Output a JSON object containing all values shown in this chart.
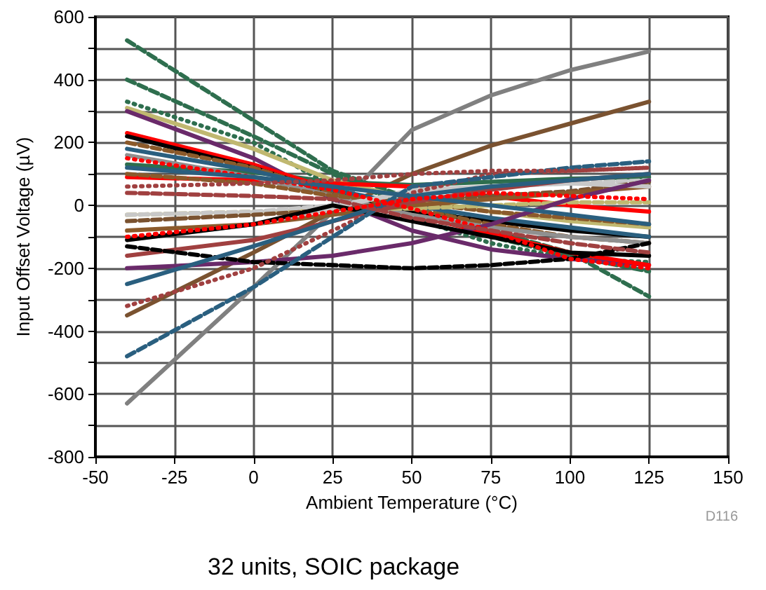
{
  "chart_data": {
    "type": "line",
    "xlabel": "Ambient Temperature (°C)",
    "ylabel": "Input Offset Voltage (µV)",
    "annotations": [
      "D116",
      "32 units, SOIC package"
    ],
    "x": [
      -40,
      0,
      25,
      50,
      75,
      100,
      125
    ],
    "xlim": [
      -50,
      150
    ],
    "xticks": [
      -50,
      -25,
      0,
      25,
      50,
      75,
      100,
      125,
      150
    ],
    "ylim": [
      -800,
      600
    ],
    "yticks": [
      -800,
      {
        "value": -700,
        "label": null
      },
      -600,
      {
        "value": -500,
        "label": null
      },
      -400,
      {
        "value": -300,
        "label": null
      },
      -200,
      {
        "value": -100,
        "label": null
      },
      0,
      {
        "value": 100,
        "label": null
      },
      200,
      {
        "value": 300,
        "label": null
      },
      400,
      {
        "value": 500,
        "label": null
      },
      600
    ],
    "grid": true,
    "marker": "none",
    "series": [
      {
        "color": "#808080",
        "line_style": "solid",
        "values": [
          -630,
          -260,
          -20,
          240,
          350,
          430,
          490
        ]
      },
      {
        "color": "#7a5230",
        "line_style": "solid",
        "values": [
          -350,
          -150,
          -20,
          100,
          190,
          260,
          330
        ]
      },
      {
        "color": "#2e6e4e",
        "line_style": "dashed",
        "values": [
          525,
          270,
          110,
          20,
          -80,
          -150,
          -290
        ]
      },
      {
        "color": "#2e6e4e",
        "line_style": "dashed",
        "values": [
          400,
          220,
          100,
          -10,
          -100,
          -160,
          -210
        ]
      },
      {
        "color": "#2e6e4e",
        "line_style": "dotted",
        "values": [
          330,
          200,
          60,
          -40,
          -120,
          -170,
          -180
        ]
      },
      {
        "color": "#2e6e4e",
        "line_style": "solid",
        "values": [
          130,
          105,
          75,
          65,
          75,
          85,
          90
        ]
      },
      {
        "color": "#c0b870",
        "line_style": "solid",
        "values": [
          310,
          180,
          80,
          20,
          -20,
          -50,
          -70
        ]
      },
      {
        "color": "#6a2a6a",
        "line_style": "solid",
        "values": [
          300,
          150,
          20,
          -80,
          -140,
          -170,
          -190
        ]
      },
      {
        "color": "#ff0000",
        "line_style": "solid",
        "values": [
          230,
          130,
          50,
          -30,
          -90,
          -150,
          -190
        ]
      },
      {
        "color": "#ff0000",
        "line_style": "solid",
        "values": [
          90,
          80,
          70,
          60,
          30,
          0,
          -20
        ]
      },
      {
        "color": "#000000",
        "line_style": "solid",
        "values": [
          220,
          120,
          40,
          -20,
          -50,
          -80,
          -100
        ]
      },
      {
        "color": "#8b5a2b",
        "line_style": "dashed",
        "values": [
          200,
          120,
          40,
          -10,
          -60,
          -100,
          -120
        ]
      },
      {
        "color": "#909090",
        "line_style": "solid",
        "values": [
          160,
          90,
          30,
          -30,
          -70,
          -100,
          -120
        ]
      },
      {
        "color": "#2a5f7f",
        "line_style": "solid",
        "values": [
          180,
          110,
          50,
          0,
          -40,
          -70,
          -100
        ]
      },
      {
        "color": "#8b5a2b",
        "line_style": "dashed",
        "values": [
          100,
          70,
          30,
          10,
          -20,
          -40,
          -60
        ]
      },
      {
        "color": "#c0b870",
        "line_style": "dashed",
        "values": [
          -30,
          -20,
          -10,
          -10,
          0,
          10,
          10
        ]
      },
      {
        "color": "#c8c8c8",
        "line_style": "dashed",
        "values": [
          -30,
          -20,
          0,
          40,
          60,
          70,
          80
        ]
      },
      {
        "color": "#7a5230",
        "line_style": "dashed",
        "values": [
          -50,
          -30,
          -15,
          15,
          30,
          45,
          75
        ]
      },
      {
        "color": "#8b5a2b",
        "line_style": "solid",
        "values": [
          -80,
          -60,
          -30,
          0,
          20,
          40,
          60
        ]
      },
      {
        "color": "#c8c8c8",
        "line_style": "solid",
        "values": [
          -110,
          -60,
          -10,
          50,
          60,
          70,
          60
        ]
      },
      {
        "color": "#a04040",
        "line_style": "solid",
        "values": [
          -160,
          -110,
          -50,
          10,
          50,
          80,
          100
        ]
      },
      {
        "color": "#6a2a6a",
        "line_style": "solid",
        "values": [
          -200,
          -180,
          -160,
          -120,
          -60,
          20,
          80
        ]
      },
      {
        "color": "#000000",
        "line_style": "solid",
        "values": [
          -110,
          -60,
          0,
          -50,
          -100,
          -150,
          -160
        ]
      },
      {
        "color": "#000000",
        "line_style": "dashed",
        "values": [
          -130,
          -180,
          -190,
          -200,
          -190,
          -170,
          -120
        ]
      },
      {
        "color": "#2a5f7f",
        "line_style": "solid",
        "values": [
          -250,
          -130,
          -50,
          30,
          60,
          80,
          100
        ]
      },
      {
        "color": "#a04040",
        "line_style": "dotted",
        "values": [
          -320,
          -200,
          -80,
          40,
          100,
          110,
          120
        ]
      },
      {
        "color": "#2a5f7f",
        "line_style": "dashed",
        "values": [
          -480,
          -260,
          -100,
          60,
          90,
          120,
          140
        ]
      },
      {
        "color": "#ff0000",
        "line_style": "dotted",
        "values": [
          150,
          90,
          50,
          -10,
          -80,
          -170,
          -200
        ]
      },
      {
        "color": "#a04040",
        "line_style": "dashed",
        "values": [
          40,
          30,
          20,
          -40,
          -80,
          -120,
          -150
        ]
      },
      {
        "color": "#2a5f7f",
        "line_style": "solid",
        "values": [
          120,
          90,
          60,
          30,
          0,
          -30,
          -60
        ]
      },
      {
        "color": "#ff0000",
        "line_style": "dotted",
        "values": [
          -100,
          -60,
          -20,
          20,
          40,
          30,
          20
        ]
      },
      {
        "color": "#a04040",
        "line_style": "dotted",
        "values": [
          60,
          70,
          80,
          100,
          110,
          110,
          120
        ]
      }
    ]
  }
}
